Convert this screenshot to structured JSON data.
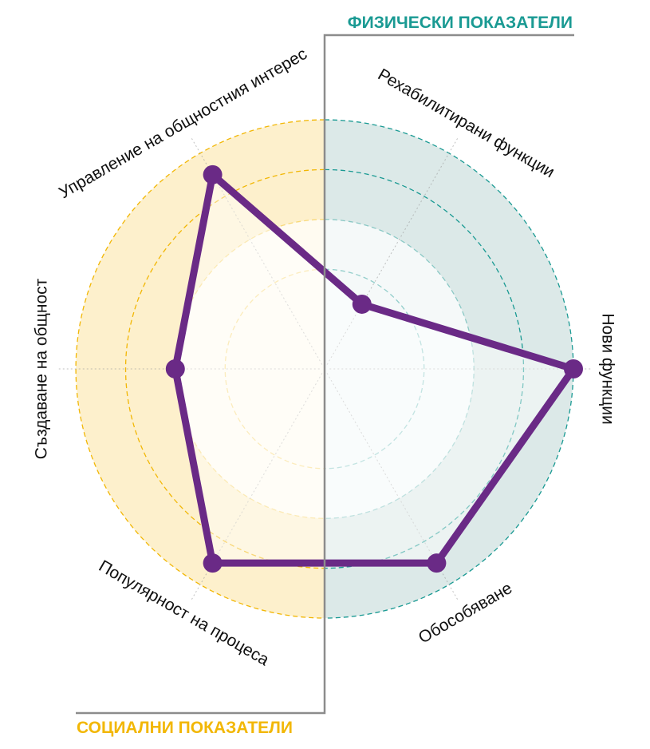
{
  "colors": {
    "physical": "#1a9a93",
    "physical_fill": "#dce9e8",
    "social": "#f2b705",
    "social_fill": "#fdf0cc",
    "series": "#6a2a86",
    "divider": "#8c8c8c",
    "spoke": "#9a9a9a"
  },
  "groups": {
    "physical_title": "ФИЗИЧЕСКИ ПОКАЗАТЕЛИ",
    "social_title": "СОЦИАЛНИ ПОКАЗАТЕЛИ"
  },
  "chart_data": {
    "type": "radar",
    "title": "",
    "rings": 5,
    "max": 5,
    "axes": [
      "Рехабилитирани функции",
      "Нови функции",
      "Обособяване",
      "Популярност на процеса",
      "Създаване на общност",
      "Управление на общностния интерес"
    ],
    "series": [
      {
        "values": [
          1.5,
          5,
          4.5,
          4.5,
          3,
          4.5
        ]
      }
    ]
  }
}
